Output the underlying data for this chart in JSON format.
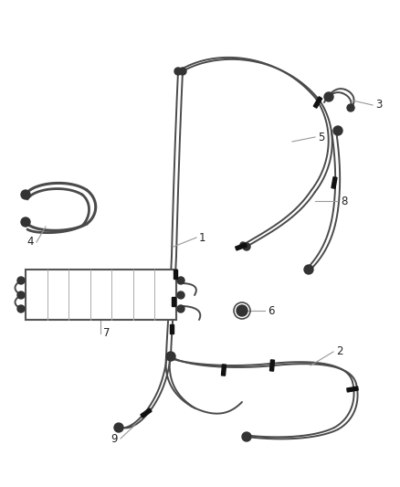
{
  "background_color": "#ffffff",
  "line_color": "#4a4a4a",
  "line_color2": "#666666",
  "label_color": "#222222",
  "label_fontsize": 8.5,
  "leader_color": "#999999",
  "clamp_color": "#111111",
  "fitting_color": "#333333"
}
